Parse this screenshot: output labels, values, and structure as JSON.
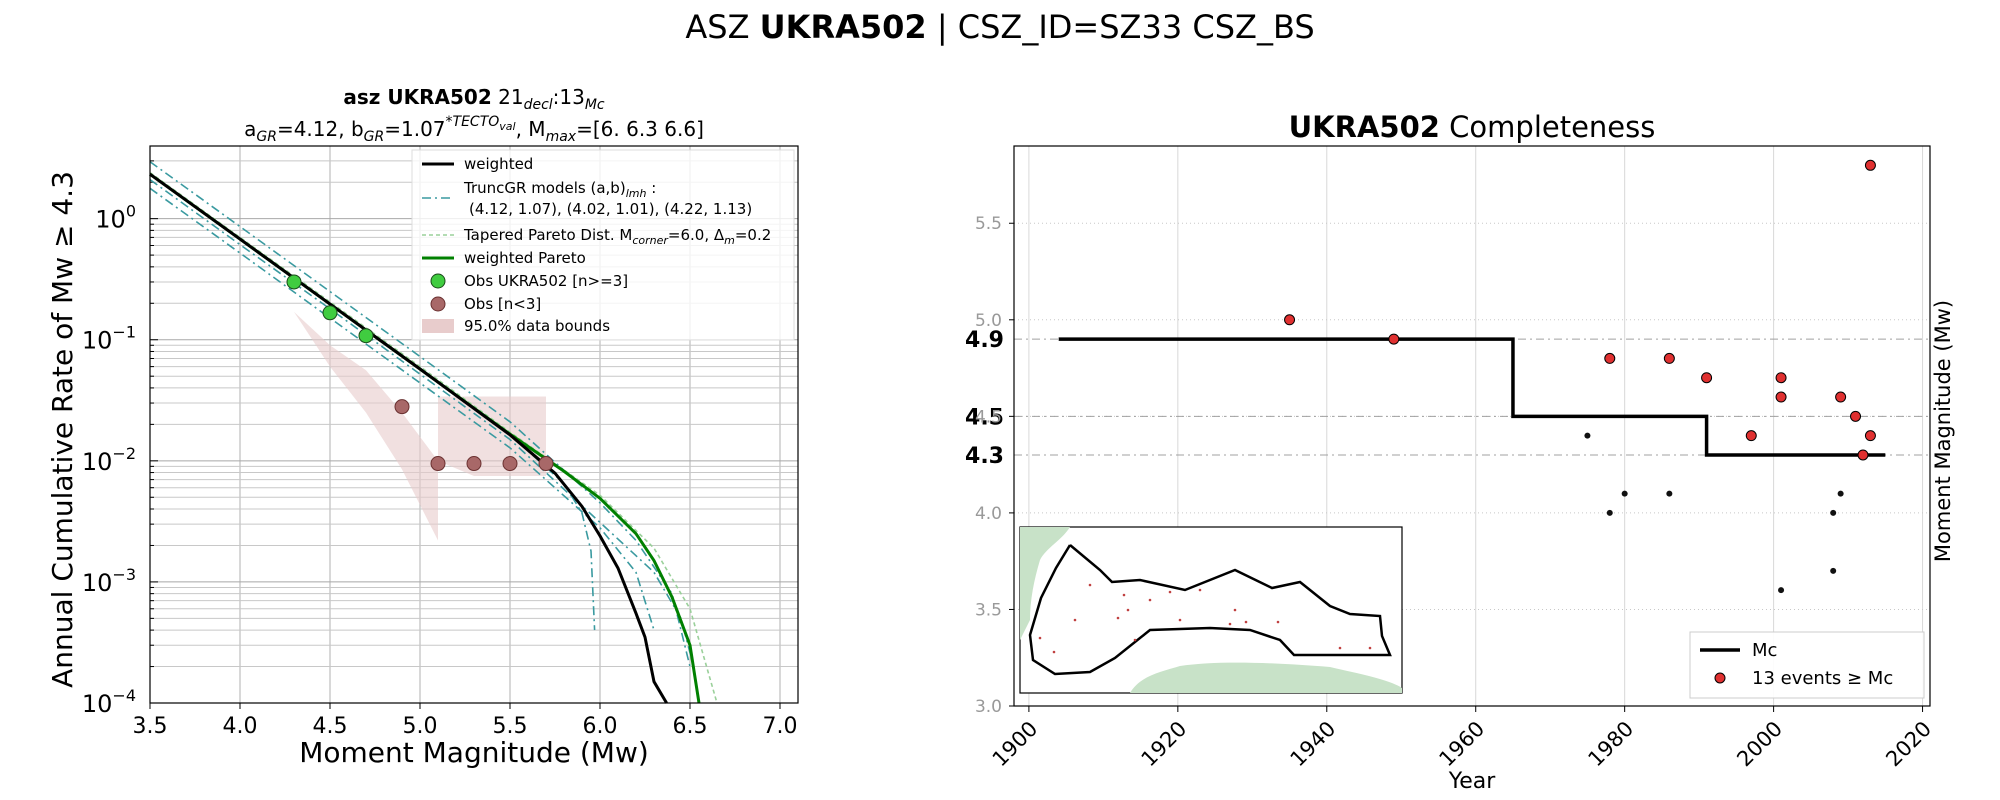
{
  "suptitle": {
    "prefix": "ASZ",
    "bold": "UKRA502",
    "suffix": "| CSZ_ID=SZ33 CSZ_BS"
  },
  "colors": {
    "weighted": "#000000",
    "truncgr": "#3a9aa0",
    "tapered": "#9ad09a",
    "weighted_pareto": "#008000",
    "obs_main": "#40cc40",
    "obs_low": "#a86868",
    "bounds": "#e8cccc",
    "events": "#e03030",
    "map_land": "#c8e2c8"
  },
  "chart_data": [
    {
      "type": "line",
      "title_line1": {
        "prefix": "asz",
        "bold": "UKRA502",
        "tail": "21",
        "sub1": "decl",
        "mid": ":13",
        "sub2": "Mc"
      },
      "title_line2": {
        "a": "a",
        "a_sub": "GR",
        "a_val": "=4.12,  b",
        "b_sub": "GR",
        "b_val": "=1.07",
        "sup": "*TECTO",
        "sup_sub": "val",
        "tail": ", M",
        "m_sub": "max",
        "m_val": "=[6.  6.3 6.6]"
      },
      "xlabel": "Moment Magnitude (Mw)",
      "ylabel": "Annual Cumulative Rate of Mw  ≥  4.3",
      "xlim": [
        3.5,
        7.1
      ],
      "ylim_log10": [
        -4,
        0.6
      ],
      "xticks": [
        "3.5",
        "4.0",
        "4.5",
        "5.0",
        "5.5",
        "6.0",
        "6.5",
        "7.0"
      ],
      "yticks": [
        {
          "base": "10",
          "exp": "0",
          "log": 0
        },
        {
          "base": "10",
          "exp": "−1",
          "log": -1
        },
        {
          "base": "10",
          "exp": "−2",
          "log": -2
        },
        {
          "base": "10",
          "exp": "−3",
          "log": -3
        },
        {
          "base": "10",
          "exp": "−4",
          "log": -4
        }
      ],
      "grid": true,
      "legend": {
        "placement": "top-right",
        "weighted": "weighted",
        "truncgr_a": "TruncGR models (a,b)",
        "truncgr_sub": "lmh",
        "truncgr_b": " :",
        "truncgr_line2": "(4.12, 1.07), (4.02, 1.01), (4.22, 1.13)",
        "tapered_a": "Tapered Pareto Dist. M",
        "tapered_sub1": "corner",
        "tapered_b": "=6.0, Δ",
        "tapered_sub2": "m",
        "tapered_c": "=0.2",
        "weighted_pareto": "weighted Pareto",
        "obs_main": "Obs UKRA502 [n>=3]",
        "obs_low": "Obs [n<3]",
        "bounds": "95.0% data bounds"
      },
      "series": [
        {
          "key": "weighted",
          "points": [
            [
              3.5,
              2.33
            ],
            [
              4.0,
              0.678
            ],
            [
              4.5,
              0.197
            ],
            [
              5.0,
              0.0573
            ],
            [
              5.5,
              0.0164
            ],
            [
              5.75,
              0.0079
            ],
            [
              5.9,
              0.0042
            ],
            [
              6.0,
              0.0024
            ],
            [
              6.1,
              0.0013
            ],
            [
              6.2,
              0.00055
            ],
            [
              6.25,
              0.00035
            ],
            [
              6.3,
              0.00015
            ],
            [
              6.37,
              0.0001
            ]
          ]
        },
        {
          "key": "weighted_pareto",
          "points": [
            [
              3.5,
              2.33
            ],
            [
              4.0,
              0.678
            ],
            [
              4.5,
              0.197
            ],
            [
              5.0,
              0.0573
            ],
            [
              5.5,
              0.0166
            ],
            [
              5.8,
              0.0082
            ],
            [
              6.0,
              0.0049
            ],
            [
              6.2,
              0.0025
            ],
            [
              6.3,
              0.0015
            ],
            [
              6.4,
              0.00075
            ],
            [
              6.5,
              0.0003
            ],
            [
              6.55,
              0.0001
            ]
          ]
        },
        {
          "key": "truncgr_m",
          "points": [
            [
              3.5,
              2.33
            ],
            [
              4.0,
              0.678
            ],
            [
              4.5,
              0.197
            ],
            [
              5.0,
              0.0573
            ],
            [
              5.5,
              0.0164
            ],
            [
              5.8,
              0.0065
            ],
            [
              5.9,
              0.0037
            ],
            [
              5.95,
              0.0018
            ],
            [
              5.97,
              0.0004
            ]
          ]
        },
        {
          "key": "truncgr_l",
          "points": [
            [
              3.5,
              1.78
            ],
            [
              4.0,
              0.52
            ],
            [
              4.5,
              0.151
            ],
            [
              5.0,
              0.044
            ],
            [
              5.5,
              0.0128
            ],
            [
              6.0,
              0.0028
            ],
            [
              6.2,
              0.0012
            ],
            [
              6.3,
              0.0004
            ]
          ]
        },
        {
          "key": "truncgr_h",
          "points": [
            [
              3.5,
              2.95
            ],
            [
              4.0,
              0.86
            ],
            [
              4.5,
              0.25
            ],
            [
              5.0,
              0.0727
            ],
            [
              5.5,
              0.021
            ],
            [
              6.0,
              0.0045
            ],
            [
              6.2,
              0.0022
            ],
            [
              6.4,
              0.0008
            ],
            [
              6.5,
              0.0002
            ]
          ]
        },
        {
          "key": "truncgr_m2",
          "points": [
            [
              3.5,
              2.1
            ],
            [
              4.0,
              0.61
            ],
            [
              4.5,
              0.18
            ],
            [
              5.0,
              0.052
            ],
            [
              5.5,
              0.015
            ],
            [
              6.0,
              0.0031
            ],
            [
              6.3,
              0.0012
            ],
            [
              6.45,
              0.0005
            ],
            [
              6.52,
              0.0002
            ]
          ]
        },
        {
          "key": "tapered",
          "points": [
            [
              3.5,
              2.4
            ],
            [
              4.0,
              0.7
            ],
            [
              4.5,
              0.205
            ],
            [
              5.0,
              0.06
            ],
            [
              5.5,
              0.0172
            ],
            [
              6.0,
              0.0052
            ],
            [
              6.3,
              0.0019
            ],
            [
              6.5,
              0.0006
            ],
            [
              6.65,
              0.0001
            ]
          ]
        }
      ],
      "bounds_polygon": [
        [
          4.3,
          0.17
        ],
        [
          4.5,
          0.09
        ],
        [
          4.7,
          0.056
        ],
        [
          4.9,
          0.025
        ],
        [
          5.1,
          0.01
        ],
        [
          5.3,
          0.0075
        ],
        [
          5.7,
          0.0075
        ],
        [
          5.7,
          0.034
        ],
        [
          5.5,
          0.034
        ],
        [
          5.3,
          0.034
        ],
        [
          5.1,
          0.034
        ],
        [
          5.1,
          0.0022
        ],
        [
          5.3,
          0.0022
        ],
        [
          5.7,
          0.0022
        ],
        [
          5.7,
          0.0022
        ],
        [
          5.1,
          0.0022
        ],
        [
          4.9,
          0.0085
        ],
        [
          4.7,
          0.025
        ],
        [
          4.5,
          0.06
        ],
        [
          4.3,
          0.17
        ]
      ],
      "obs_main": [
        [
          4.3,
          0.3
        ],
        [
          4.5,
          0.167
        ],
        [
          4.7,
          0.108
        ]
      ],
      "obs_low": [
        [
          4.9,
          0.028
        ],
        [
          5.1,
          0.0095
        ],
        [
          5.3,
          0.0095
        ],
        [
          5.5,
          0.0095
        ],
        [
          5.7,
          0.0095
        ]
      ]
    },
    {
      "type": "scatter",
      "title_bold": "UKRA502",
      "title_rest": " Completeness",
      "xlabel": "Year",
      "ylabel": "Moment Magnitude (Mw)",
      "xlim": [
        1898,
        2021
      ],
      "ylim": [
        3.0,
        5.9
      ],
      "xticks": [
        1900,
        1920,
        1940,
        1960,
        1980,
        2000,
        2020
      ],
      "yticks": [
        "3.0",
        "3.5",
        "4.0",
        "4.5",
        "5.0",
        "5.5"
      ],
      "mc_labels": [
        {
          "label": "4.9",
          "value": 4.9
        },
        {
          "label": "4.5",
          "value": 4.5
        },
        {
          "label": "4.3",
          "value": 4.3
        }
      ],
      "grid": true,
      "mc_step": [
        [
          1904,
          4.9
        ],
        [
          1965,
          4.9
        ],
        [
          1965,
          4.5
        ],
        [
          1991,
          4.5
        ],
        [
          1991,
          4.3
        ],
        [
          2015,
          4.3
        ]
      ],
      "events_above": [
        [
          1935,
          5.0
        ],
        [
          1949,
          4.9
        ],
        [
          1978,
          4.8
        ],
        [
          1986,
          4.8
        ],
        [
          1991,
          4.7
        ],
        [
          2001,
          4.7
        ],
        [
          2001,
          4.6
        ],
        [
          2009,
          4.6
        ],
        [
          2011,
          4.5
        ],
        [
          1997,
          4.4
        ],
        [
          2013,
          4.4
        ],
        [
          2012,
          4.3
        ],
        [
          2013,
          5.8
        ]
      ],
      "events_below": [
        [
          1975,
          4.4
        ],
        [
          1978,
          4.0
        ],
        [
          1980,
          4.1
        ],
        [
          1986,
          4.1
        ],
        [
          2008,
          4.0
        ],
        [
          2009,
          4.1
        ],
        [
          2001,
          3.6
        ],
        [
          2008,
          3.7
        ]
      ],
      "legend": {
        "placement": "bottom-right",
        "mc": "Mc",
        "events": "13 events  ≥  Mc"
      }
    }
  ]
}
